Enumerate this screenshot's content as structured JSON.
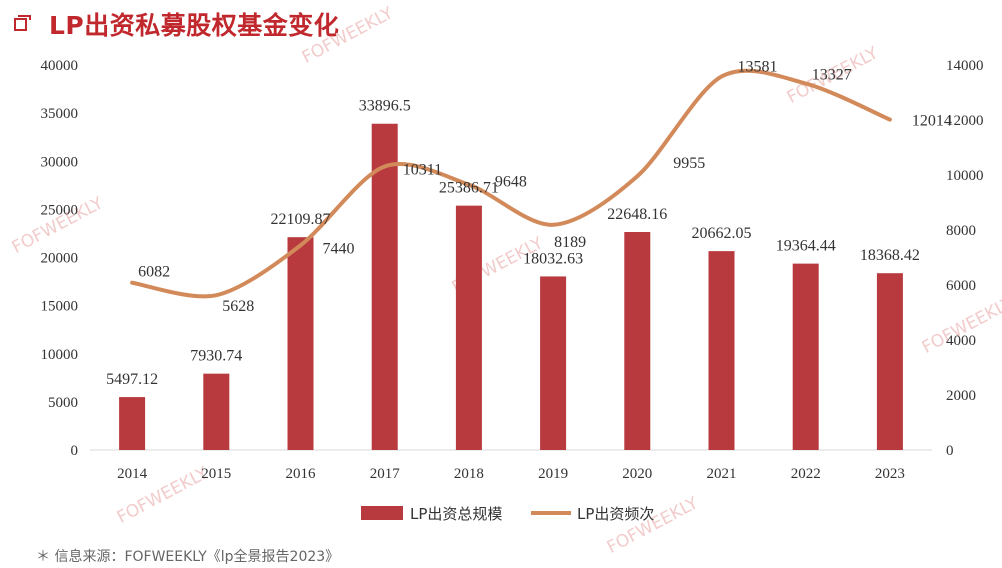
{
  "header": {
    "title": "LP出资私募股权基金变化",
    "icon": "checkbox-icon"
  },
  "source_note": "＊ 信息来源：FOFWEEKLY《lp全景报告2023》",
  "watermark_text": "FOFWEEKLY",
  "colors": {
    "bar": "#b83a3e",
    "line": "#d38a5a",
    "title": "#c0282d",
    "axis": "#d9d9d9"
  },
  "chart_data": {
    "type": "bar",
    "categories": [
      "2014",
      "2015",
      "2016",
      "2017",
      "2018",
      "2019",
      "2020",
      "2021",
      "2022",
      "2023"
    ],
    "series": [
      {
        "name": "LP出资总规模",
        "type": "bar",
        "axis": "left",
        "values": [
          5497.12,
          7930.74,
          22109.87,
          33896.5,
          25386.71,
          18032.63,
          22648.16,
          20662.05,
          19364.44,
          18368.42
        ],
        "labels": [
          "5497.12",
          "7930.74",
          "22109.87",
          "33896.5",
          "25386.71",
          "18032.63",
          "22648.16",
          "20662.05",
          "19364.44",
          "18368.42"
        ]
      },
      {
        "name": "LP出资频次",
        "type": "line",
        "axis": "right",
        "smooth": true,
        "values": [
          6082,
          5628,
          7440,
          10311,
          9648,
          8189,
          9955,
          13581,
          13327,
          12014
        ],
        "labels": [
          "6082",
          "5628",
          "7440",
          "10311",
          "9648",
          "8189",
          "9955",
          "13581",
          "13327",
          "12014"
        ]
      }
    ],
    "y_left": {
      "min": 0,
      "max": 40000,
      "ticks": [
        "0",
        "5000",
        "10000",
        "15000",
        "20000",
        "25000",
        "30000",
        "35000",
        "40000"
      ]
    },
    "y_right": {
      "min": 0,
      "max": 14000,
      "ticks": [
        "0",
        "2000",
        "4000",
        "6000",
        "8000",
        "10000",
        "12000",
        "14000"
      ]
    },
    "grid": false,
    "legend_position": "bottom"
  }
}
